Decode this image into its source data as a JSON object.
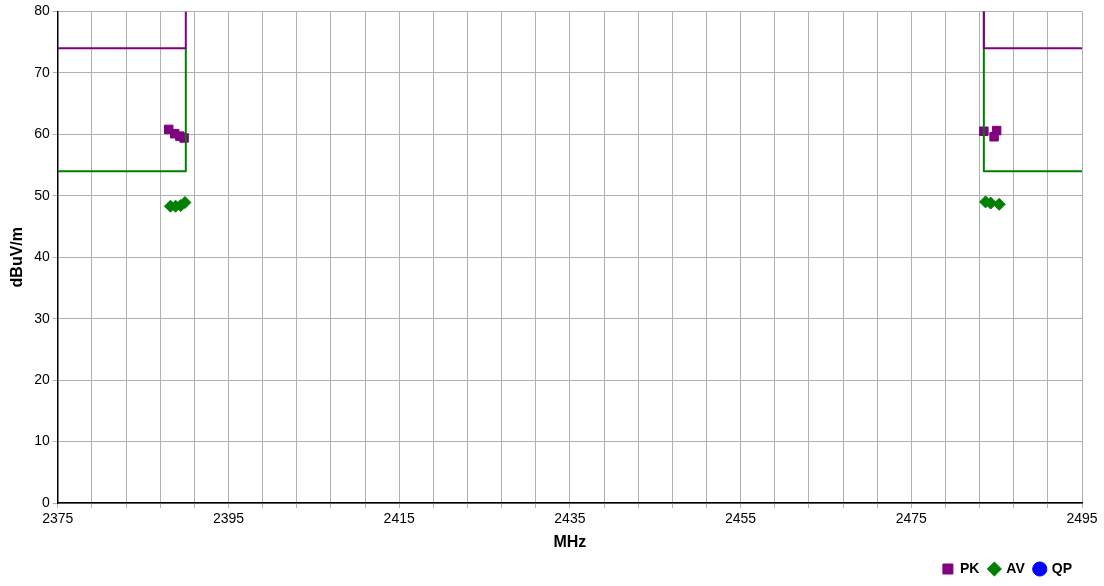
{
  "chart_data": {
    "type": "scatter",
    "xlabel": "MHz",
    "ylabel": "dBuV/m",
    "xlim": [
      2375,
      2495
    ],
    "ylim": [
      0,
      80
    ],
    "xticks": [
      2375,
      {
        "value": 2379,
        "label": null
      },
      {
        "value": 2383,
        "label": null
      },
      {
        "value": 2387,
        "label": null
      },
      {
        "value": 2391,
        "label": null
      },
      2395,
      {
        "value": 2399,
        "label": null
      },
      {
        "value": 2403,
        "label": null
      },
      {
        "value": 2407,
        "label": null
      },
      {
        "value": 2411,
        "label": null
      },
      2415,
      {
        "value": 2419,
        "label": null
      },
      {
        "value": 2423,
        "label": null
      },
      {
        "value": 2427,
        "label": null
      },
      {
        "value": 2431,
        "label": null
      },
      2435,
      {
        "value": 2439,
        "label": null
      },
      {
        "value": 2443,
        "label": null
      },
      {
        "value": 2447,
        "label": null
      },
      {
        "value": 2451,
        "label": null
      },
      2455,
      {
        "value": 2459,
        "label": null
      },
      {
        "value": 2463,
        "label": null
      },
      {
        "value": 2467,
        "label": null
      },
      {
        "value": 2471,
        "label": null
      },
      2475,
      {
        "value": 2479,
        "label": null
      },
      {
        "value": 2483,
        "label": null
      },
      {
        "value": 2487,
        "label": null
      },
      {
        "value": 2491,
        "label": null
      },
      2495
    ],
    "yticks": [
      0,
      10,
      20,
      30,
      40,
      50,
      60,
      70,
      80
    ],
    "grid": true,
    "legend": "bottom right",
    "series": [
      {
        "type": "line",
        "marker": "none",
        "color": "#800080",
        "x": [
          2375,
          2390,
          2390
        ],
        "values": [
          74,
          74,
          80
        ]
      },
      {
        "type": "line",
        "marker": "none",
        "color": "#800080",
        "x": [
          2483.5,
          2483.5,
          2495
        ],
        "values": [
          80,
          74,
          74
        ]
      },
      {
        "type": "line",
        "marker": "none",
        "color": "#008000",
        "x": [
          2375,
          2390,
          2390
        ],
        "values": [
          54,
          54,
          74
        ]
      },
      {
        "type": "line",
        "marker": "none",
        "color": "#008000",
        "x": [
          2483.5,
          2483.5,
          2495
        ],
        "values": [
          80,
          54,
          54
        ]
      },
      {
        "name": "PK",
        "marker": "square",
        "color": "#800080",
        "x": [
          2388.0,
          2388.7,
          2389.3,
          2389.8,
          2483.5,
          2485.0,
          2484.7
        ],
        "values": [
          60.8,
          60.1,
          59.7,
          59.4,
          60.5,
          60.6,
          59.6
        ]
      },
      {
        "name": "AV",
        "marker": "diamond",
        "color": "#008000",
        "x": [
          2388.2,
          2388.8,
          2389.4,
          2389.9,
          2483.7,
          2484.3,
          2485.3
        ],
        "values": [
          48.3,
          48.3,
          48.4,
          48.9,
          49.0,
          48.8,
          48.6
        ]
      },
      {
        "name": "QP",
        "marker": "circle",
        "color": "#0000ff"
      }
    ]
  }
}
